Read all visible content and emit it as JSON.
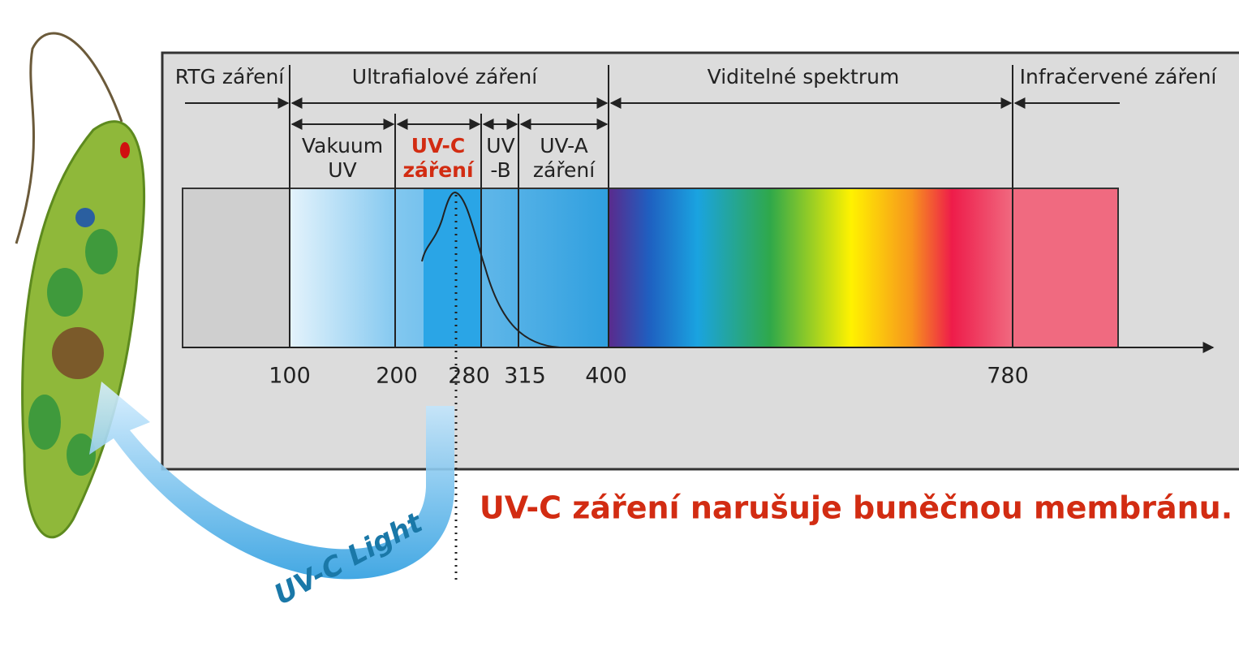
{
  "regions": [
    {
      "label": "RTG záření"
    },
    {
      "label": "Ultrafialové záření"
    },
    {
      "label": "Viditelné spektrum"
    },
    {
      "label": "Infračervené záření"
    }
  ],
  "uv_bands": [
    {
      "lines": [
        "Vakuum",
        "UV"
      ]
    },
    {
      "lines": [
        "UV-C",
        "záření"
      ]
    },
    {
      "lines": [
        "UV",
        "-B"
      ]
    },
    {
      "lines": [
        "UV-A",
        "záření"
      ]
    }
  ],
  "axis_ticks": [
    "100",
    "200",
    "280",
    "315",
    "400",
    "780"
  ],
  "arrow_label": "UV-C Light",
  "caption": "UV-C záření narušuje buněčnou membránu."
}
